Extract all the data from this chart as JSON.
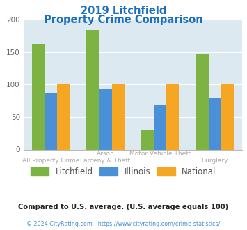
{
  "title_line1": "2019 Litchfield",
  "title_line2": "Property Crime Comparison",
  "title_color": "#1a6fbe",
  "litchfield": [
    162,
    184,
    29,
    147
  ],
  "illinois": [
    87,
    93,
    68,
    79
  ],
  "national": [
    100,
    100,
    100,
    100
  ],
  "color_litchfield": "#7cb342",
  "color_illinois": "#4a90d9",
  "color_national": "#f5a623",
  "ylim": [
    0,
    200
  ],
  "yticks": [
    0,
    50,
    100,
    150,
    200
  ],
  "plot_bg": "#dce9f0",
  "fig_bg": "#ffffff",
  "xlabel_top": [
    "",
    "Arson",
    "Motor Vehicle Theft",
    ""
  ],
  "xlabel_bottom": [
    "All Property Crime",
    "Larceny & Theft",
    "",
    "Burglary"
  ],
  "note_text": "Compared to U.S. average. (U.S. average equals 100)",
  "note_color": "#222222",
  "copyright_text": "© 2024 CityRating.com - https://www.cityrating.com/crime-statistics/",
  "copyright_color": "#4a90d9",
  "legend_labels": [
    "Litchfield",
    "Illinois",
    "National"
  ],
  "xlabel_color": "#aaaaaa",
  "legend_text_color": "#555555"
}
